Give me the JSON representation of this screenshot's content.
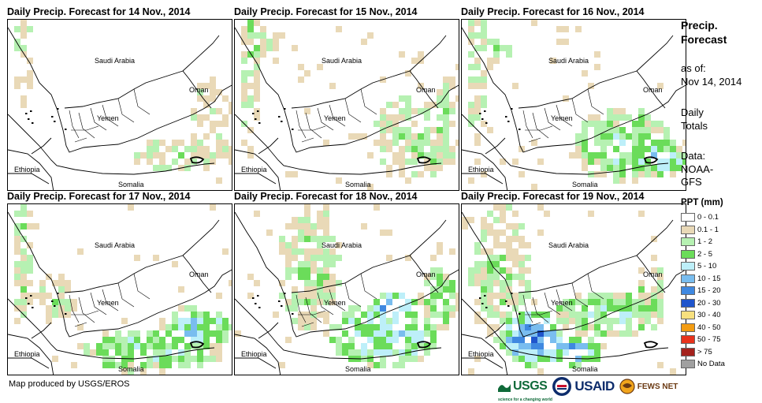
{
  "panels": [
    {
      "title": "Daily Precip. Forecast for 14 Nov., 2014",
      "day": 14
    },
    {
      "title": "Daily Precip. Forecast for 15 Nov., 2014",
      "day": 15
    },
    {
      "title": "Daily Precip. Forecast for 16 Nov., 2014",
      "day": 16
    },
    {
      "title": "Daily Precip. Forecast for 17 Nov., 2014",
      "day": 17
    },
    {
      "title": "Daily Precip. Forecast for 18 Nov., 2014",
      "day": 18
    },
    {
      "title": "Daily Precip. Forecast for 19 Nov., 2014",
      "day": 19
    }
  ],
  "map_labels": {
    "saudi": "Saudi Arabia",
    "oman": "Oman",
    "yemen": "Yemen",
    "ethiopia": "Ethiopia",
    "somalia": "Somalia"
  },
  "legend": {
    "title_line1": "Precip.",
    "title_line2": "Forecast",
    "asof_line1": "as of:",
    "asof_line2": "Nov 14, 2014",
    "daily_line1": "Daily",
    "daily_line2": "Totals",
    "data_line1": "Data:",
    "data_line2": "NOAA-",
    "data_line3": "GFS",
    "ppt_title": "PPT (mm)",
    "classes": [
      {
        "label": "0 - 0.1",
        "color": "#ffffff"
      },
      {
        "label": "0.1 - 1",
        "color": "#e9d9b7"
      },
      {
        "label": "1 - 2",
        "color": "#b6f1b2"
      },
      {
        "label": "2 - 5",
        "color": "#6bdc5a"
      },
      {
        "label": "5 - 10",
        "color": "#bdeff9"
      },
      {
        "label": "10 - 15",
        "color": "#79bdef"
      },
      {
        "label": "15 - 20",
        "color": "#3f88e0"
      },
      {
        "label": "20 - 30",
        "color": "#1f55cc"
      },
      {
        "label": "30 - 40",
        "color": "#f7e07e"
      },
      {
        "label": "40 - 50",
        "color": "#f39c12"
      },
      {
        "label": "50 - 75",
        "color": "#e8331c"
      },
      {
        "label": "> 75",
        "color": "#a4221c"
      },
      {
        "label": "No Data",
        "color": "#a0a0a0"
      }
    ]
  },
  "credit": "Map produced by USGS/EROS",
  "logos": {
    "usgs": "USGS",
    "usgs_tagline": "science for a changing world",
    "usaid": "USAID",
    "fews": "FEWS NET"
  }
}
